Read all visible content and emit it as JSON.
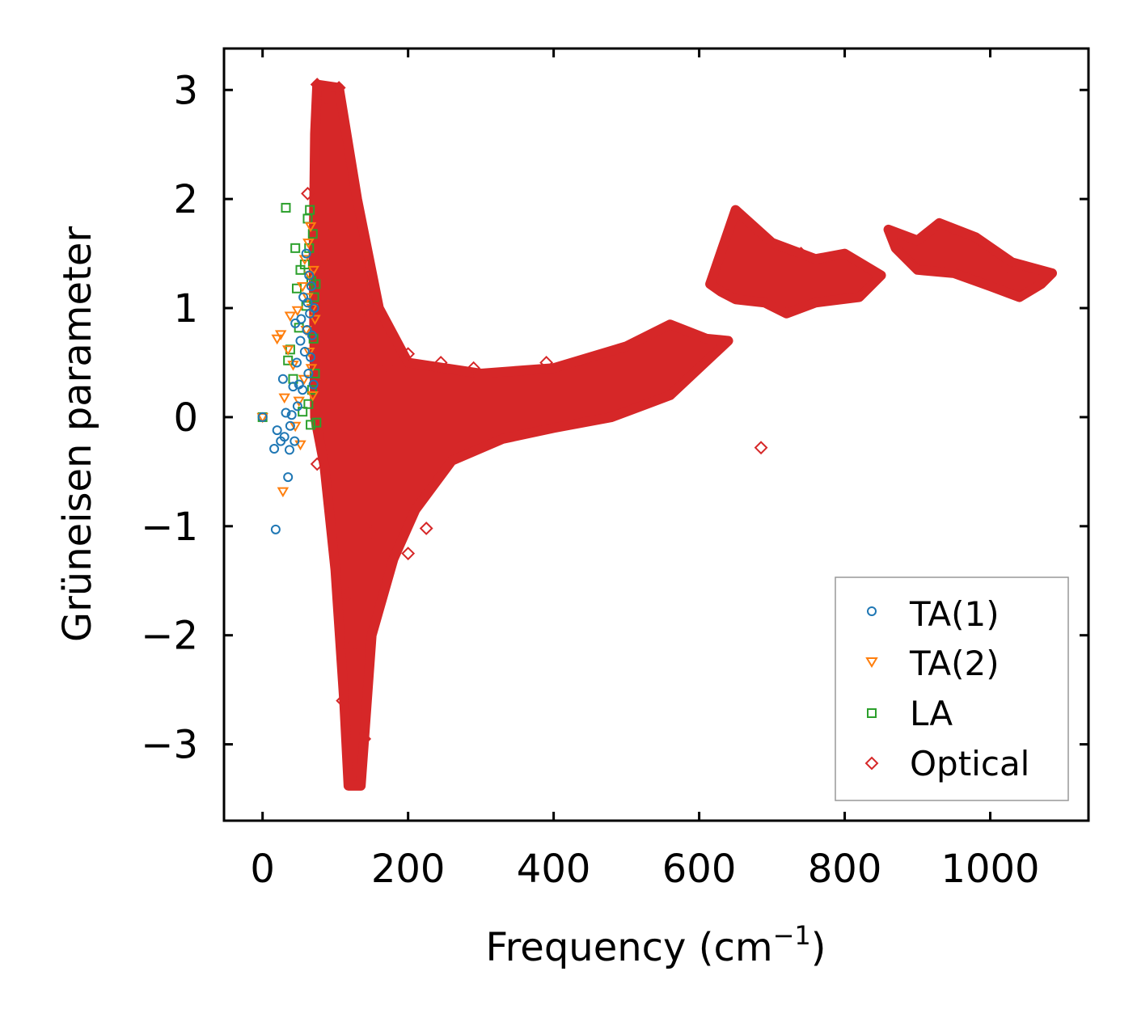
{
  "chart_data": {
    "type": "scatter",
    "title": "",
    "xlabel": "Frequency (cm",
    "xlabel_sup": "−1",
    "xlabel_close": ")",
    "ylabel": "Grüneisen parameter",
    "xlim": [
      -53,
      1135
    ],
    "ylim": [
      -3.7,
      3.38
    ],
    "xticks": [
      0,
      200,
      400,
      600,
      800,
      1000
    ],
    "xtick_labels": [
      "0",
      "200",
      "400",
      "600",
      "800",
      "1000"
    ],
    "yticks": [
      3,
      2,
      1,
      0,
      -1,
      -2,
      -3
    ],
    "ytick_labels": [
      "3",
      "2",
      "1",
      "0",
      "−1",
      "−2",
      "−3"
    ],
    "grid": false,
    "legend_position": "lower-right",
    "colors": {
      "ta1": "#1f77b4",
      "ta2": "#ff7f0e",
      "la": "#2ca02c",
      "optical": "#d62728"
    },
    "series": [
      {
        "name": "TA(1)",
        "marker": "circle",
        "color": "#1f77b4",
        "points": [
          [
            0,
            0.0
          ],
          [
            16,
            -0.29
          ],
          [
            20,
            -0.12
          ],
          [
            18,
            -1.03
          ],
          [
            25,
            -0.22
          ],
          [
            28,
            0.35
          ],
          [
            30,
            -0.18
          ],
          [
            32,
            0.04
          ],
          [
            35,
            -0.55
          ],
          [
            37,
            -0.3
          ],
          [
            38,
            -0.08
          ],
          [
            40,
            0.02
          ],
          [
            42,
            0.28
          ],
          [
            44,
            -0.22
          ],
          [
            45,
            0.86
          ],
          [
            47,
            0.5
          ],
          [
            48,
            0.1
          ],
          [
            50,
            0.3
          ],
          [
            52,
            0.7
          ],
          [
            53,
            0.9
          ],
          [
            55,
            0.25
          ],
          [
            56,
            1.1
          ],
          [
            58,
            0.6
          ],
          [
            60,
            1.5
          ],
          [
            61,
            0.8
          ],
          [
            62,
            1.05
          ],
          [
            63,
            0.4
          ],
          [
            64,
            1.3
          ],
          [
            65,
            0.95
          ],
          [
            66,
            0.55
          ],
          [
            67,
            1.2
          ],
          [
            68,
            0.75
          ],
          [
            70,
            0.3
          ],
          [
            71,
            1.0
          ]
        ]
      },
      {
        "name": "TA(2)",
        "marker": "triangle-down",
        "color": "#ff7f0e",
        "points": [
          [
            0,
            0.0
          ],
          [
            20,
            0.72
          ],
          [
            25,
            0.76
          ],
          [
            28,
            -0.68
          ],
          [
            30,
            0.18
          ],
          [
            35,
            0.62
          ],
          [
            38,
            0.93
          ],
          [
            42,
            0.48
          ],
          [
            45,
            -0.08
          ],
          [
            48,
            0.98
          ],
          [
            50,
            0.15
          ],
          [
            52,
            -0.25
          ],
          [
            55,
            1.2
          ],
          [
            57,
            0.35
          ],
          [
            58,
            1.45
          ],
          [
            60,
            0.8
          ],
          [
            62,
            1.1
          ],
          [
            63,
            1.6
          ],
          [
            64,
            0.6
          ],
          [
            65,
            1.3
          ],
          [
            66,
            1.75
          ],
          [
            67,
            0.45
          ],
          [
            68,
            1.0
          ],
          [
            69,
            0.2
          ],
          [
            70,
            1.35
          ],
          [
            72,
            0.9
          ]
        ]
      },
      {
        "name": "LA",
        "marker": "square",
        "color": "#2ca02c",
        "points": [
          [
            0,
            0.0
          ],
          [
            32,
            1.92
          ],
          [
            35,
            0.52
          ],
          [
            38,
            0.62
          ],
          [
            42,
            0.35
          ],
          [
            45,
            1.55
          ],
          [
            47,
            1.18
          ],
          [
            50,
            0.82
          ],
          [
            52,
            1.35
          ],
          [
            55,
            0.05
          ],
          [
            58,
            1.4
          ],
          [
            60,
            1.02
          ],
          [
            62,
            1.82
          ],
          [
            63,
            0.12
          ],
          [
            64,
            1.55
          ],
          [
            65,
            1.9
          ],
          [
            66,
            -0.07
          ],
          [
            67,
            1.25
          ],
          [
            68,
            0.25
          ],
          [
            69,
            1.68
          ],
          [
            70,
            0.72
          ],
          [
            71,
            1.1
          ],
          [
            72,
            0.4
          ],
          [
            73,
            1.22
          ],
          [
            74,
            -0.05
          ]
        ]
      },
      {
        "name": "Optical",
        "marker": "diamond",
        "color": "#d62728",
        "envelope": [
          [
            [
              75,
              3.05
            ],
            [
              105,
              3.02
            ],
            [
              130,
              2.0
            ],
            [
              160,
              1.0
            ],
            [
              200,
              0.5
            ],
            [
              300,
              0.4
            ],
            [
              400,
              0.45
            ],
            [
              500,
              0.65
            ],
            [
              560,
              0.85
            ],
            [
              610,
              0.72
            ],
            [
              640,
              0.7
            ],
            [
              560,
              0.2
            ],
            [
              480,
              0.0
            ],
            [
              400,
              -0.1
            ],
            [
              330,
              -0.2
            ],
            [
              260,
              -0.4
            ],
            [
              210,
              -0.85
            ],
            [
              180,
              -1.3
            ],
            [
              150,
              -2.0
            ],
            [
              135,
              -3.38
            ],
            [
              118,
              -3.38
            ],
            [
              112,
              -2.6
            ],
            [
              100,
              -1.4
            ],
            [
              85,
              -0.45
            ],
            [
              72,
              0.0
            ],
            [
              70,
              1.5
            ],
            [
              72,
              2.6
            ]
          ],
          [
            [
              615,
              1.22
            ],
            [
              650,
              1.9
            ],
            [
              700,
              1.6
            ],
            [
              760,
              1.45
            ],
            [
              800,
              1.5
            ],
            [
              850,
              1.3
            ],
            [
              820,
              1.1
            ],
            [
              760,
              1.05
            ],
            [
              720,
              0.95
            ],
            [
              690,
              1.05
            ],
            [
              650,
              1.08
            ],
            [
              630,
              1.15
            ]
          ],
          [
            [
              860,
              1.72
            ],
            [
              900,
              1.62
            ],
            [
              930,
              1.78
            ],
            [
              980,
              1.65
            ],
            [
              1030,
              1.42
            ],
            [
              1085,
              1.32
            ],
            [
              1070,
              1.22
            ],
            [
              1040,
              1.1
            ],
            [
              1000,
              1.2
            ],
            [
              950,
              1.32
            ],
            [
              900,
              1.35
            ],
            [
              870,
              1.55
            ]
          ]
        ],
        "outliers": [
          [
            75,
            3.05
          ],
          [
            105,
            3.02
          ],
          [
            80,
            2.88
          ],
          [
            110,
            2.7
          ],
          [
            62,
            2.05
          ],
          [
            95,
            2.5
          ],
          [
            140,
            0.98
          ],
          [
            170,
            0.48
          ],
          [
            200,
            0.58
          ],
          [
            245,
            0.5
          ],
          [
            290,
            0.45
          ],
          [
            390,
            0.5
          ],
          [
            685,
            -0.28
          ],
          [
            740,
            1.5
          ],
          [
            1025,
            1.38
          ],
          [
            75,
            -0.43
          ],
          [
            118,
            -1.62
          ],
          [
            120,
            -2.12
          ],
          [
            110,
            -2.6
          ],
          [
            140,
            -2.95
          ],
          [
            200,
            -1.25
          ],
          [
            225,
            -1.02
          ],
          [
            150,
            -1.05
          ]
        ]
      }
    ]
  }
}
